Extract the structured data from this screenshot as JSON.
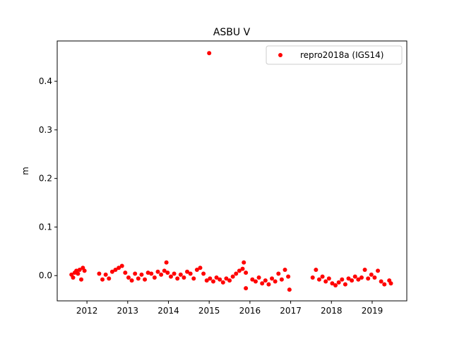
{
  "chart_data": {
    "type": "scatter",
    "title": "ASBU V",
    "ylabel": "m",
    "legend": "upper right",
    "xlim": [
      2011.27,
      2019.85
    ],
    "ylim": [
      -0.052,
      0.483
    ],
    "xticks": [
      2012,
      2013,
      2014,
      2015,
      2016,
      2017,
      2018,
      2019
    ],
    "yticks": [
      {
        "value": 0,
        "label": "0.0"
      },
      0.1,
      0.2,
      0.3,
      0.4
    ],
    "x": [
      2011.62,
      2011.66,
      2011.7,
      2011.74,
      2011.78,
      2011.82,
      2011.86,
      2011.9,
      2011.94,
      2012.3,
      2012.38,
      2012.46,
      2012.54,
      2012.62,
      2012.7,
      2012.78,
      2012.86,
      2012.94,
      2013.02,
      2013.1,
      2013.18,
      2013.26,
      2013.34,
      2013.42,
      2013.5,
      2013.58,
      2013.66,
      2013.74,
      2013.82,
      2013.9,
      2013.98,
      2014.06,
      2014.14,
      2014.22,
      2014.3,
      2014.38,
      2014.46,
      2014.54,
      2014.62,
      2014.7,
      2014.78,
      2014.86,
      2014.94,
      2015.02,
      2015.1,
      2015.18,
      2015.26,
      2015.34,
      2015.42,
      2015.5,
      2015.58,
      2015.66,
      2015.74,
      2015.82,
      2015.9,
      2013.95,
      2015.0,
      2015.85,
      2015.9,
      2016.06,
      2016.14,
      2016.22,
      2016.3,
      2016.38,
      2016.46,
      2016.54,
      2016.62,
      2016.7,
      2016.78,
      2016.86,
      2016.94,
      2016.97,
      2017.54,
      2017.62,
      2017.7,
      2017.78,
      2017.86,
      2017.94,
      2018.02,
      2018.1,
      2018.18,
      2018.26,
      2018.34,
      2018.42,
      2018.5,
      2018.58,
      2018.66,
      2018.74,
      2018.82,
      2018.9,
      2018.98,
      2019.06,
      2019.14,
      2019.22,
      2019.3,
      2019.42,
      2019.46
    ],
    "series": [
      {
        "name": "repro2018a (IGS14)",
        "color": "#ff0000",
        "values": [
          0.002,
          -0.004,
          0.006,
          0.01,
          0.004,
          0.012,
          -0.008,
          0.016,
          0.01,
          0.004,
          -0.008,
          0.002,
          -0.006,
          0.008,
          0.012,
          0.016,
          0.02,
          0.006,
          -0.004,
          -0.01,
          0.004,
          -0.006,
          0.002,
          -0.008,
          0.006,
          0.004,
          -0.004,
          0.008,
          0.002,
          0.01,
          0.006,
          -0.002,
          0.004,
          -0.006,
          0.002,
          -0.004,
          0.008,
          0.004,
          -0.006,
          0.012,
          0.016,
          0.004,
          -0.01,
          -0.006,
          -0.012,
          -0.004,
          -0.008,
          -0.014,
          -0.006,
          -0.01,
          -0.002,
          0.004,
          0.01,
          0.014,
          0.006,
          0.027,
          0.458,
          0.027,
          -0.026,
          -0.008,
          -0.012,
          -0.004,
          -0.016,
          -0.01,
          -0.018,
          -0.006,
          -0.012,
          0.004,
          -0.008,
          0.012,
          -0.002,
          -0.029,
          -0.004,
          0.012,
          -0.008,
          -0.002,
          -0.012,
          -0.006,
          -0.016,
          -0.02,
          -0.014,
          -0.008,
          -0.018,
          -0.006,
          -0.01,
          -0.002,
          -0.008,
          -0.004,
          0.012,
          -0.006,
          0.002,
          -0.004,
          0.01,
          -0.012,
          -0.018,
          -0.01,
          -0.016
        ]
      }
    ]
  }
}
